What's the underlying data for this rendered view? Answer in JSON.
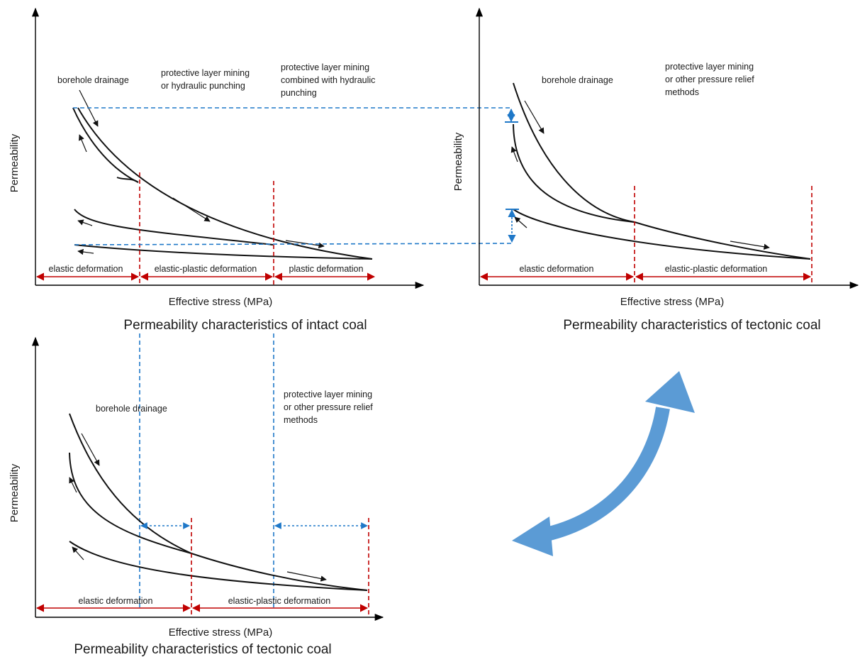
{
  "panels": {
    "intact": {
      "caption": "Permeability characteristics of intact coal",
      "xlabel": "Effective stress (MPa)",
      "ylabel": "Permeability",
      "method1": "borehole drainage",
      "method2_l1": "protective layer mining",
      "method2_l2": "or hydraulic punching",
      "method3_l1": "protective layer mining",
      "method3_l2": "combined with hydraulic",
      "method3_l3": "punching",
      "zone1": "elastic deformation",
      "zone2": "elastic-plastic deformation",
      "zone3": "plastic deformation"
    },
    "tectonic_top": {
      "caption": "Permeability characteristics of tectonic coal",
      "xlabel": "Effective stress (MPa)",
      "ylabel": "Permeability",
      "method1": "borehole drainage",
      "method2_l1": "protective layer mining",
      "method2_l2": "or other pressure relief",
      "method2_l3": "methods",
      "zone1": "elastic deformation",
      "zone2": "elastic-plastic deformation"
    },
    "tectonic_bottom": {
      "caption": "Permeability characteristics of tectonic coal",
      "xlabel": "Effective stress (MPa)",
      "ylabel": "Permeability",
      "method1": "borehole drainage",
      "method2_l1": "protective layer mining",
      "method2_l2": "or other pressure relief",
      "method2_l3": "methods",
      "zone1": "elastic deformation",
      "zone2": "elastic-plastic deformation"
    }
  },
  "colors": {
    "zone_boundary": "#c00000",
    "comparison_line": "#1f78c8",
    "big_arrow": "#5b9bd5",
    "curve": "#111111"
  },
  "icons": {
    "big_arrow": "double-headed-curved-arrow-icon"
  }
}
